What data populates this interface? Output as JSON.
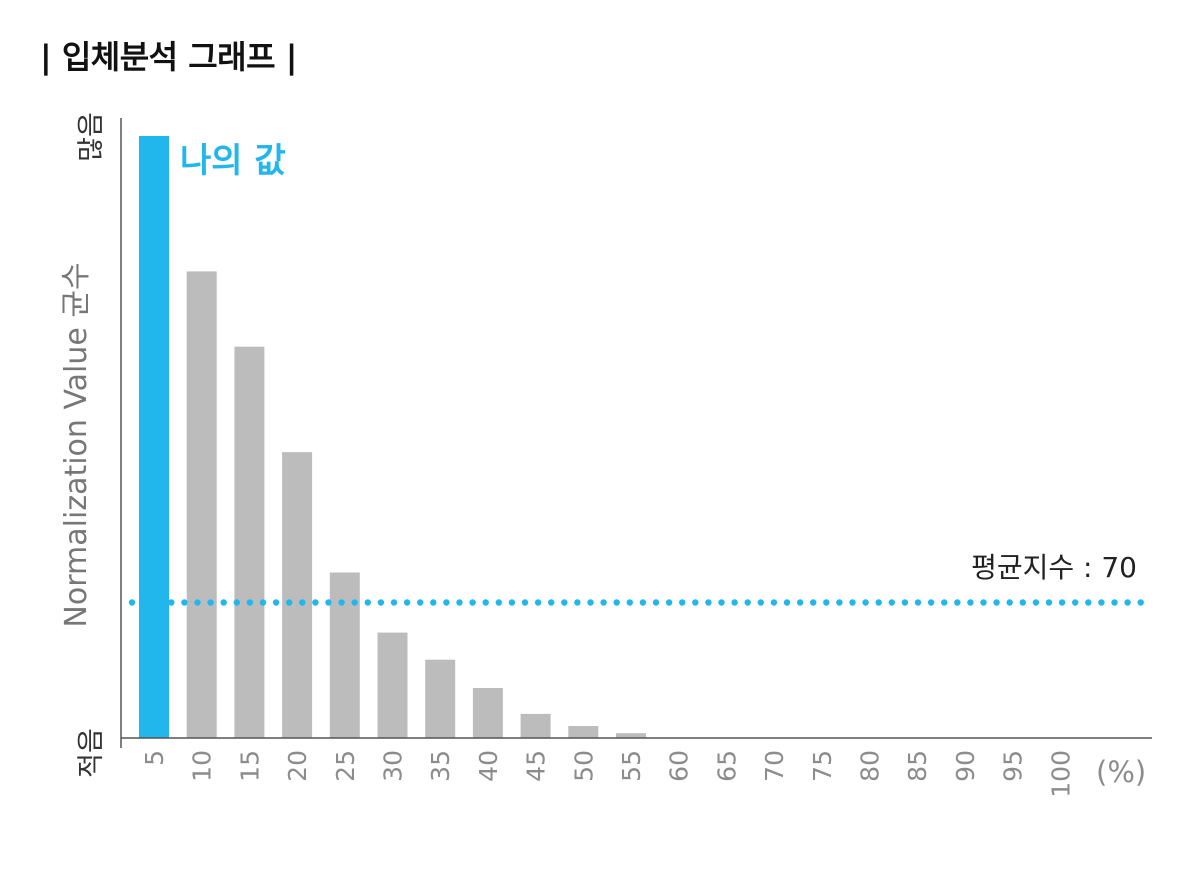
{
  "title": "| 입체분석 그래프 |",
  "chart_data": {
    "type": "bar",
    "categories": [
      "5",
      "10",
      "15",
      "20",
      "25",
      "30",
      "35",
      "40",
      "45",
      "50",
      "55",
      "60",
      "65",
      "70",
      "75",
      "80",
      "85",
      "90",
      "95",
      "100"
    ],
    "values": [
      100,
      77.5,
      65,
      47.5,
      27.5,
      17.5,
      13,
      8.3,
      4,
      2,
      0.8,
      0,
      0,
      0,
      0,
      0,
      0,
      0,
      0,
      0
    ],
    "highlight_index": 0,
    "ylim": [
      0,
      100
    ],
    "x_unit": "(%)",
    "y_top_label": "많음",
    "y_bottom_label": "적음",
    "y_axis_label": "Normalization Value 균수",
    "highlight_label": "나의 값",
    "average": {
      "label": "평균지수 : 70",
      "value": 22.5
    },
    "colors": {
      "highlight": "#22b7ec",
      "bar": "#bdbcbc",
      "axis": "#555555",
      "tick_text": "#8c8c8c",
      "average_line": "#22b7ec"
    }
  }
}
